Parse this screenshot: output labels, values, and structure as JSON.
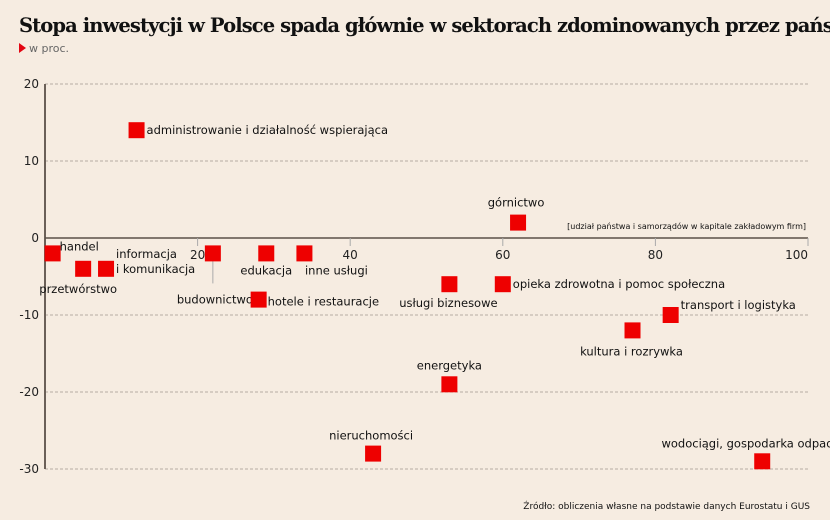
{
  "title": "Stopa inwestycji w Polsce spada głównie w sektorach zdominowanych przez państwo",
  "subtitle": "w proc.",
  "source": "Źródło: obliczenia własne na podstawie danych Eurostatu i GUS",
  "colors": {
    "marker": "#ee0000",
    "background": "#f6ece1",
    "axis": "#6b6058"
  },
  "chart_data": {
    "type": "scatter",
    "title": "Stopa inwestycji w Polsce spada głównie w sektorach zdominowanych przez państwo",
    "xlabel": "[udział państwa i samorządów w kapitale zakładowym firm]",
    "ylabel": "w proc.",
    "xlim": [
      0,
      100
    ],
    "ylim": [
      -30,
      20
    ],
    "xticks": [
      20,
      40,
      60,
      80,
      100
    ],
    "yticks": [
      20,
      10,
      0,
      -10,
      -20,
      -30
    ],
    "grid": "horizontal dashed",
    "points": [
      {
        "label": "handel",
        "x": 1,
        "y": -2
      },
      {
        "label": "przetwórstwo",
        "x": 5,
        "y": -4
      },
      {
        "label": "informacja\ni komunikacja",
        "x": 8,
        "y": -4
      },
      {
        "label": "administrowanie i działalność wspierająca",
        "x": 12,
        "y": 14
      },
      {
        "label": "budownictwo",
        "x": 22,
        "y": -2
      },
      {
        "label": "edukacja",
        "x": 29,
        "y": -2
      },
      {
        "label": "inne usługi",
        "x": 34,
        "y": -2
      },
      {
        "label": "hotele i restauracje",
        "x": 28,
        "y": -8
      },
      {
        "label": "nieruchomości",
        "x": 43,
        "y": -28
      },
      {
        "label": "energetyka",
        "x": 53,
        "y": -19
      },
      {
        "label": "usługi biznesowe",
        "x": 53,
        "y": -6
      },
      {
        "label": "opieka zdrowotna i pomoc społeczna",
        "x": 60,
        "y": -6
      },
      {
        "label": "górnictwo",
        "x": 62,
        "y": 2
      },
      {
        "label": "kultura i rozrywka",
        "x": 77,
        "y": -12
      },
      {
        "label": "transport i logistyka",
        "x": 82,
        "y": -10
      },
      {
        "label": "wodociągi, gospodarka odpadami",
        "x": 94,
        "y": -29
      }
    ]
  }
}
